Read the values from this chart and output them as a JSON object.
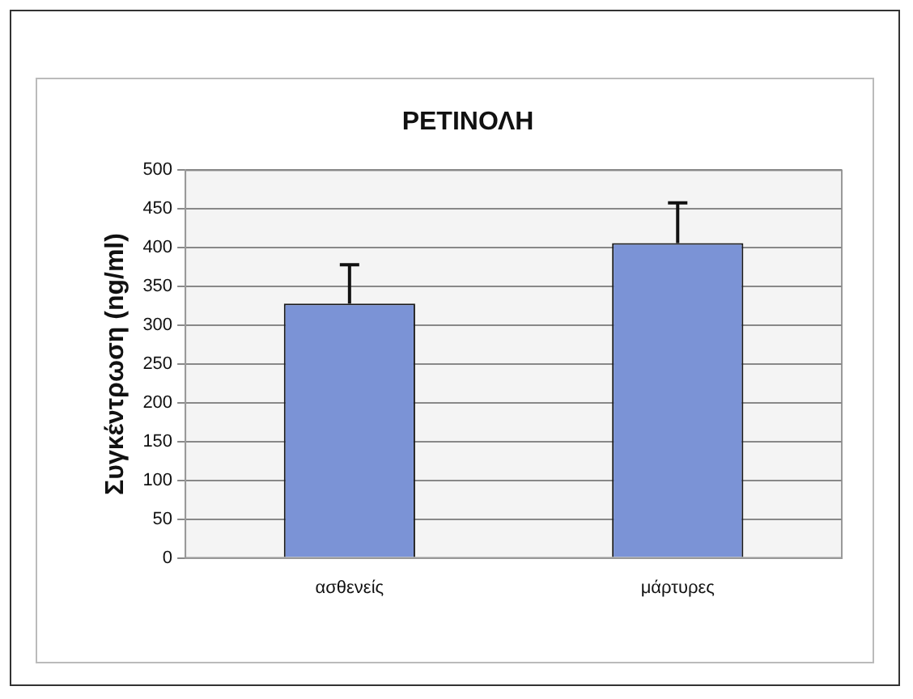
{
  "chart_data": {
    "type": "bar",
    "title": "ΡΕΤΙΝΟΛΗ",
    "ylabel": "Συγκέντρωση (ng/ml)",
    "categories": [
      "ασθενείς",
      "μάρτυρες"
    ],
    "values": [
      328,
      406
    ],
    "errors": [
      [
        328,
        378
      ],
      [
        406,
        458
      ]
    ],
    "color": "#7b93d6",
    "ylim": [
      0,
      500
    ],
    "yticks": [
      0,
      50,
      100,
      150,
      200,
      250,
      300,
      350,
      400,
      450,
      500
    ],
    "grid": "y",
    "legend": false
  }
}
